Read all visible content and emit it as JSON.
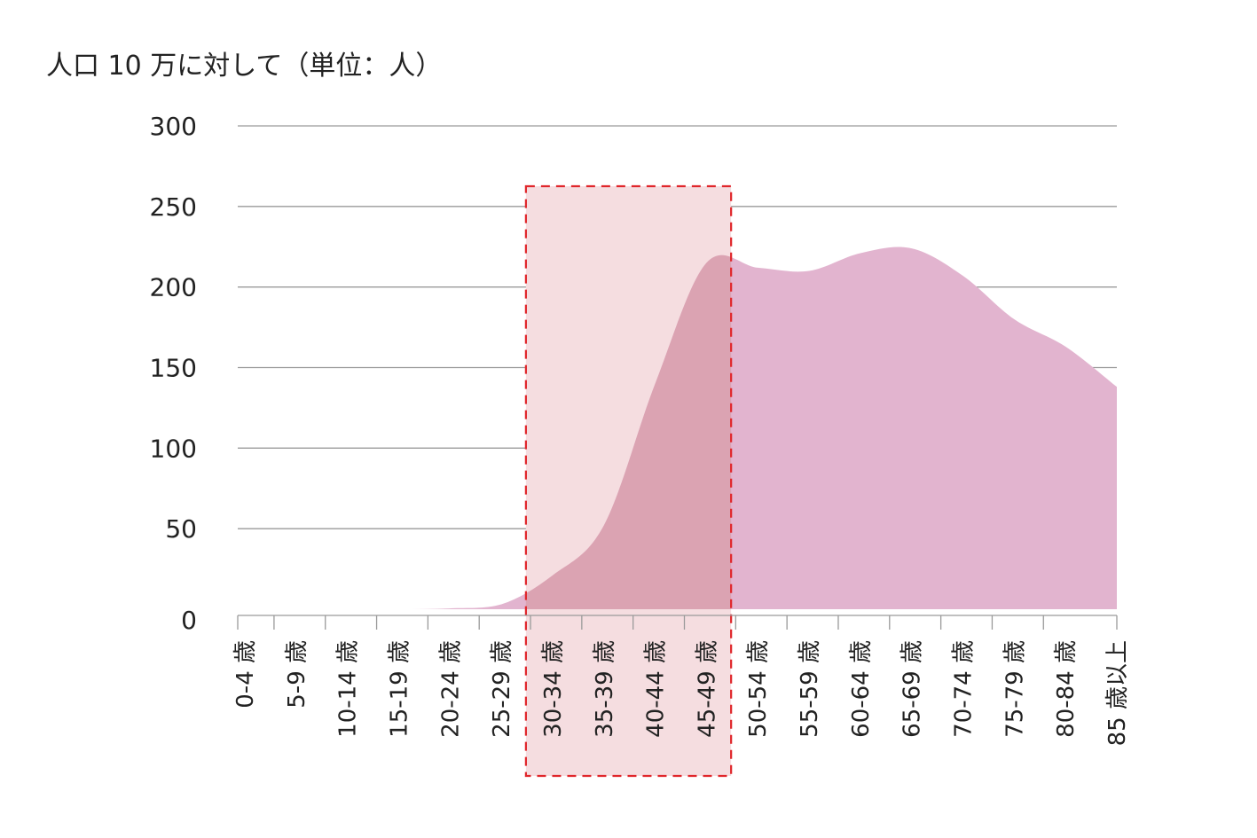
{
  "chart_data": {
    "type": "area",
    "title": "",
    "ylabel": "人口 10 万に対して（単位：人）",
    "xlabel": "",
    "ylim": [
      0,
      300
    ],
    "yticks": [
      "0",
      "50",
      "100",
      "150",
      "200",
      "250",
      "300"
    ],
    "grid": true,
    "categories": [
      "0-4 歳",
      "5-9 歳",
      "10-14 歳",
      "15-19 歳",
      "20-24 歳",
      "25-29 歳",
      "30-34 歳",
      "35-39 歳",
      "40-44 歳",
      "45-49 歳",
      "50-54 歳",
      "55-59 歳",
      "60-64 歳",
      "65-69 歳",
      "70-74 歳",
      "75-79 歳",
      "80-84 歳",
      "85 歳以上"
    ],
    "values": [
      0,
      0,
      0,
      0,
      0.5,
      3,
      21,
      52,
      140,
      215,
      212,
      210,
      221,
      224,
      207,
      180,
      163,
      138
    ],
    "highlight": {
      "from": "30-34 歳",
      "to": "45-49 歳",
      "fill": "#f5dde0",
      "border": "#e0262b"
    },
    "colors": {
      "area": "#e2b4cf",
      "area_in_highlight": "#dba3b2",
      "grid": "#9a9a9a"
    }
  }
}
